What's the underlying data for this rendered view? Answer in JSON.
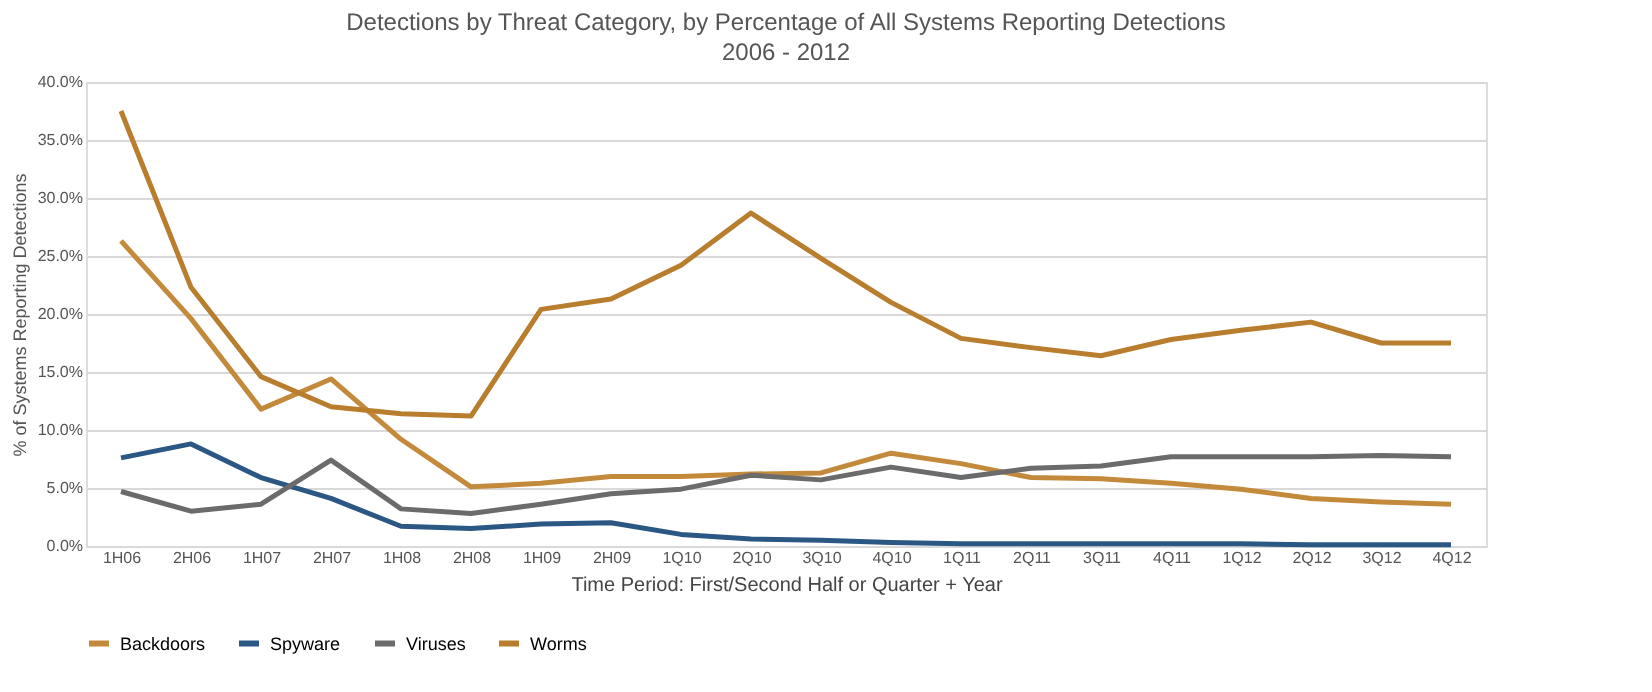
{
  "chart_data": {
    "type": "line",
    "title": "Detections by Threat Category, by Percentage of All Systems Reporting Detections",
    "subtitle": "2006 - 2012",
    "xlabel": "Time Period: First/Second Half or Quarter + Year",
    "ylabel": "% of Systems Reporting Detections",
    "categories": [
      "1H06",
      "2H06",
      "1H07",
      "2H07",
      "1H08",
      "2H08",
      "1H09",
      "2H09",
      "1Q10",
      "2Q10",
      "3Q10",
      "4Q10",
      "1Q11",
      "2Q11",
      "3Q11",
      "4Q11",
      "1Q12",
      "2Q12",
      "3Q12",
      "4Q12"
    ],
    "series": [
      {
        "name": "Backdoors",
        "color": "#c48a3c",
        "values": [
          26.3,
          19.6,
          11.8,
          14.4,
          9.2,
          5.1,
          5.4,
          6.0,
          6.0,
          6.2,
          6.3,
          8.0,
          7.1,
          5.9,
          5.8,
          5.4,
          4.9,
          4.1,
          3.8,
          3.6
        ]
      },
      {
        "name": "Spyware",
        "color": "#2a5783",
        "values": [
          7.6,
          8.8,
          5.9,
          4.1,
          1.7,
          1.5,
          1.9,
          2.0,
          1.0,
          0.6,
          0.5,
          0.3,
          0.2,
          0.2,
          0.2,
          0.2,
          0.2,
          0.1,
          0.1,
          0.1
        ]
      },
      {
        "name": "Viruses",
        "color": "#6b6b6b",
        "values": [
          4.7,
          3.0,
          3.6,
          7.4,
          3.2,
          2.8,
          3.6,
          4.5,
          4.9,
          6.1,
          5.7,
          6.8,
          5.9,
          6.7,
          6.9,
          7.7,
          7.7,
          7.7,
          7.8,
          7.7
        ]
      },
      {
        "name": "Worms",
        "color": "#b97d2e",
        "values": [
          37.5,
          22.3,
          14.6,
          12.0,
          11.4,
          11.2,
          20.4,
          21.3,
          24.2,
          28.7,
          24.8,
          21.0,
          17.9,
          17.1,
          16.4,
          17.8,
          18.6,
          19.3,
          17.5,
          17.5
        ]
      }
    ],
    "ylim": [
      0,
      40
    ],
    "yticks": [
      {
        "value": 0,
        "label": "0.0%"
      },
      {
        "value": 5,
        "label": "5.0%"
      },
      {
        "value": 10,
        "label": "10.0%"
      },
      {
        "value": 15,
        "label": "15.0%"
      },
      {
        "value": 20,
        "label": "20.0%"
      },
      {
        "value": 25,
        "label": "25.0%"
      },
      {
        "value": 30,
        "label": "30.0%"
      },
      {
        "value": 35,
        "label": "35.0%"
      },
      {
        "value": 40,
        "label": "40.0%"
      }
    ],
    "grid": "y",
    "legend": "bottom",
    "marker": "none",
    "line_style": "solid"
  }
}
